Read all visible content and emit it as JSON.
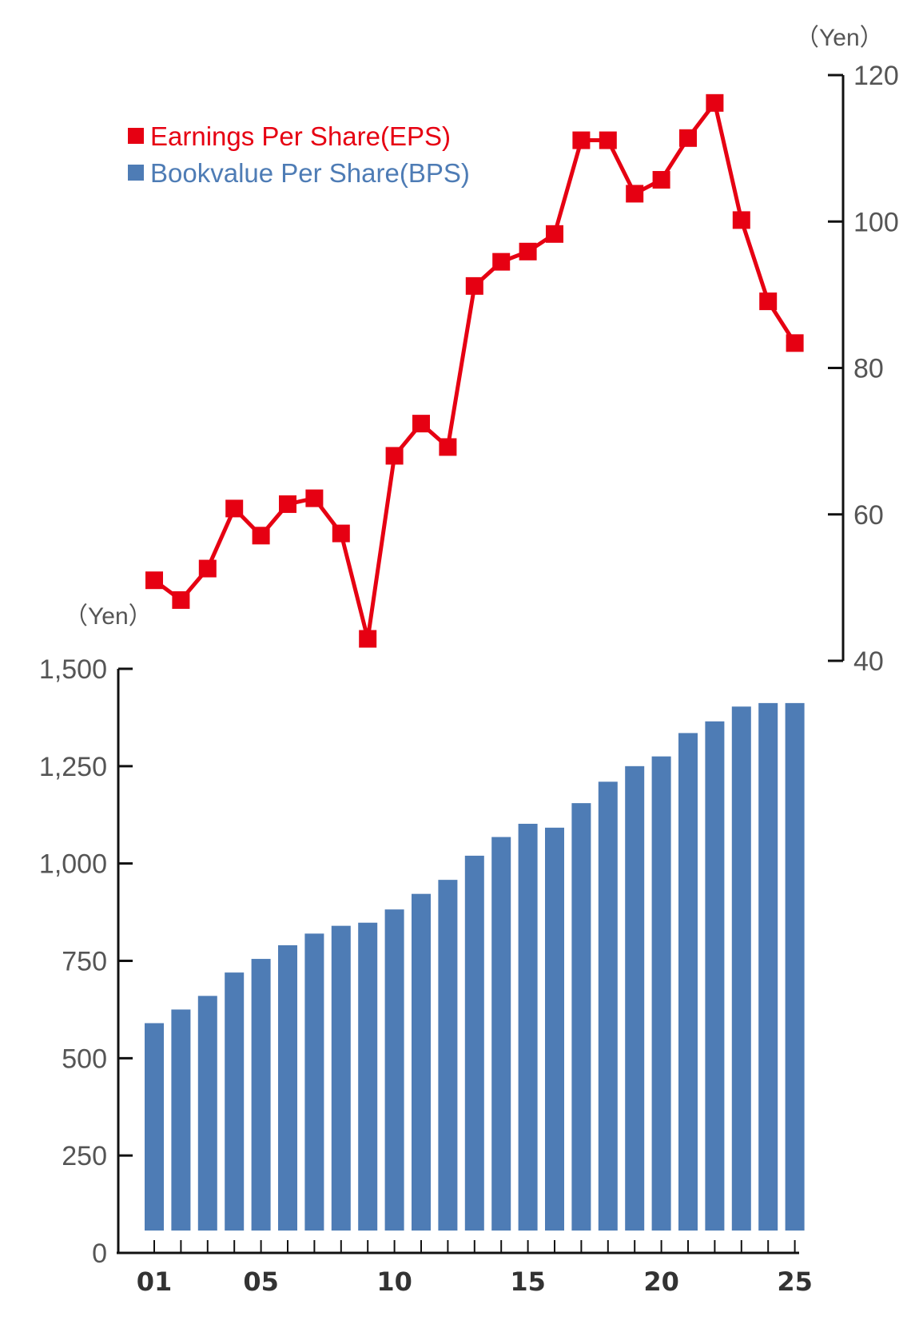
{
  "chart_data": [
    {
      "type": "line",
      "series": [
        {
          "name": "Earnings Per Share(EPS)",
          "color": "#e60012",
          "x": [
            "01",
            "02",
            "03",
            "04",
            "05",
            "06",
            "07",
            "08",
            "09",
            "10",
            "11",
            "12",
            "13",
            "14",
            "15",
            "16",
            "17",
            "18",
            "19",
            "20",
            "21",
            "22",
            "23",
            "24",
            "25"
          ],
          "values": [
            51,
            48.3,
            52.6,
            60.8,
            57.1,
            61.4,
            62.2,
            57.4,
            43,
            68,
            72.4,
            69.2,
            91.2,
            94.5,
            95.9,
            98.3,
            111.1,
            111.1,
            103.8,
            105.7,
            111.4,
            116.2,
            100.2,
            89.1,
            83.4
          ]
        }
      ],
      "y_unit": "（Yen）",
      "y_axis_side": "right",
      "ylim": [
        40,
        120
      ],
      "y_ticks": [
        "40",
        "60",
        "80",
        "100",
        "120"
      ]
    },
    {
      "type": "bar",
      "series": [
        {
          "name": "Bookvalue Per Share(BPS)",
          "color": "#4e7cb5",
          "categories": [
            "01",
            "02",
            "03",
            "04",
            "05",
            "06",
            "07",
            "08",
            "09",
            "10",
            "11",
            "12",
            "13",
            "14",
            "15",
            "16",
            "17",
            "18",
            "19",
            "20",
            "21",
            "22",
            "23",
            "24",
            "25"
          ],
          "values": [
            590,
            625,
            660,
            720,
            755,
            790,
            820,
            840,
            848,
            882,
            922,
            958,
            1020,
            1068,
            1102,
            1092,
            1155,
            1210,
            1250,
            1275,
            1335,
            1365,
            1403,
            1412,
            1412
          ]
        }
      ],
      "y_unit": "（Yen）",
      "y_axis_side": "left",
      "ylim": [
        0,
        1500
      ],
      "y_ticks": [
        "0",
        "250",
        "500",
        "750",
        "1,000",
        "1,250",
        "1,500"
      ],
      "x_tick_labels": [
        "01",
        "05",
        "10",
        "15",
        "20",
        "25"
      ],
      "grid": false
    }
  ],
  "legend": {
    "items": [
      {
        "label": "Earnings Per Share(EPS)",
        "color": "#e60012"
      },
      {
        "label": "Bookvalue Per Share(BPS)",
        "color": "#4e7cb5"
      }
    ]
  }
}
